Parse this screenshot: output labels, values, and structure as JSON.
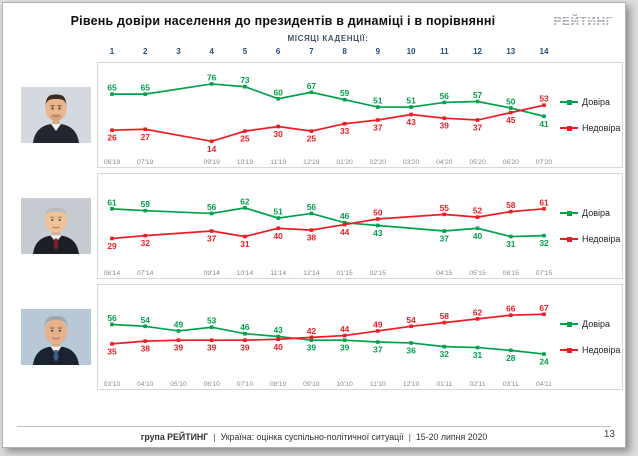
{
  "page": {
    "title": "Рівень довіри населення до президентів в динаміці і в порівнянні",
    "logo": "РЕЙТИНГ",
    "term_months_label": "МІСЯЦІ КАДЕНЦІЇ:",
    "term_months": [
      1,
      2,
      3,
      4,
      5,
      6,
      7,
      8,
      9,
      10,
      11,
      12,
      13,
      14
    ],
    "legend": {
      "trust": "Довіра",
      "distrust": "Недовіра"
    },
    "colors": {
      "trust": "#00A14B",
      "distrust": "#ED1C24",
      "term_numbers": "#1F4E79",
      "axis_text": "#8a8a8a"
    },
    "footer": {
      "org": "група РЕЙТИНГ",
      "divider": "|",
      "report": "Україна: оцінка суспільно-політичної ситуації",
      "dates": "15-20 липня 2020",
      "page_number": "13"
    }
  },
  "chart_data": [
    {
      "type": "line",
      "president": "zelensky",
      "term_months": [
        1,
        2,
        4,
        5,
        6,
        7,
        8,
        9,
        10,
        11,
        12,
        13,
        14
      ],
      "x_labels": [
        "06'19",
        "07'19",
        "09'19",
        "10'19",
        "11'19",
        "12'19",
        "01'20",
        "02'20",
        "03'20",
        "04'20",
        "05'20",
        "06'20",
        "07'20"
      ],
      "series": [
        {
          "name": "Довіра",
          "color": "#00A14B",
          "values": [
            65,
            65,
            76,
            73,
            60,
            67,
            59,
            51,
            51,
            56,
            57,
            50,
            41
          ]
        },
        {
          "name": "Недовіра",
          "color": "#ED1C24",
          "values": [
            26,
            27,
            14,
            25,
            30,
            25,
            33,
            37,
            43,
            39,
            37,
            45,
            53
          ]
        }
      ],
      "ylim": [
        0,
        100
      ],
      "grid": false,
      "legend_position": "right"
    },
    {
      "type": "line",
      "president": "poroshenko",
      "term_months": [
        1,
        2,
        4,
        5,
        6,
        7,
        8,
        9,
        11,
        12,
        13,
        14
      ],
      "x_labels": [
        "06'14",
        "07'14",
        "09'14",
        "10'14",
        "11'14",
        "12'14",
        "01'15",
        "02'15",
        "04'15",
        "05'15",
        "06'15",
        "07'15"
      ],
      "series": [
        {
          "name": "Довіра",
          "color": "#00A14B",
          "values": [
            61,
            59,
            56,
            62,
            51,
            56,
            46,
            43,
            37,
            40,
            31,
            32
          ]
        },
        {
          "name": "Недовіра",
          "color": "#ED1C24",
          "values": [
            29,
            32,
            37,
            31,
            40,
            38,
            44,
            50,
            55,
            52,
            58,
            61
          ]
        }
      ],
      "ylim": [
        0,
        100
      ],
      "grid": false,
      "legend_position": "right"
    },
    {
      "type": "line",
      "president": "yanukovych",
      "term_months": [
        1,
        2,
        3,
        4,
        5,
        6,
        7,
        8,
        9,
        10,
        11,
        12,
        13,
        14
      ],
      "x_labels": [
        "03'10",
        "04'10",
        "05'10",
        "06'10",
        "07'10",
        "08'10",
        "09'10",
        "10'10",
        "11'10",
        "12'10",
        "01'11",
        "02'11",
        "03'11",
        "04'11"
      ],
      "series": [
        {
          "name": "Довіра",
          "color": "#00A14B",
          "values": [
            56,
            54,
            49,
            53,
            46,
            43,
            39,
            39,
            37,
            36,
            32,
            31,
            28,
            24
          ]
        },
        {
          "name": "Недовіра",
          "color": "#ED1C24",
          "values": [
            35,
            38,
            39,
            39,
            39,
            40,
            42,
            44,
            49,
            54,
            58,
            62,
            66,
            67
          ]
        }
      ],
      "ylim": [
        0,
        100
      ],
      "grid": false,
      "legend_position": "right"
    }
  ]
}
